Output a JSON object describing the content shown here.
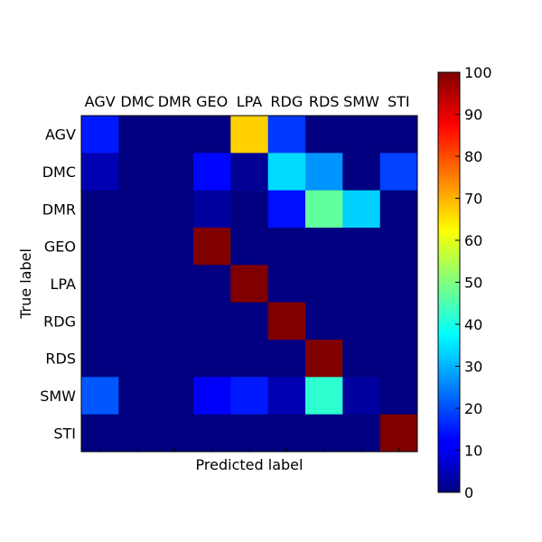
{
  "chart_data": {
    "type": "heatmap",
    "xlabel": "Predicted label",
    "ylabel": "True label",
    "x_categories": [
      "AGV",
      "DMC",
      "DMR",
      "GEO",
      "LPA",
      "RDG",
      "RDS",
      "SMW",
      "STI"
    ],
    "y_categories": [
      "AGV",
      "DMC",
      "DMR",
      "GEO",
      "LPA",
      "RDG",
      "RDS",
      "SMW",
      "STI"
    ],
    "values": [
      [
        15,
        0,
        0,
        0,
        67,
        18,
        0,
        0,
        0
      ],
      [
        5,
        0,
        0,
        13,
        2,
        34,
        27,
        0,
        19
      ],
      [
        0,
        0,
        0,
        3,
        0,
        14,
        47,
        33,
        0
      ],
      [
        0,
        0,
        0,
        100,
        0,
        0,
        0,
        0,
        0
      ],
      [
        0,
        0,
        0,
        0,
        100,
        0,
        0,
        0,
        0
      ],
      [
        0,
        0,
        0,
        0,
        0,
        100,
        0,
        0,
        0
      ],
      [
        0,
        0,
        0,
        0,
        0,
        0,
        100,
        0,
        0
      ],
      [
        21,
        0,
        0,
        12,
        15,
        5,
        42,
        3,
        0
      ],
      [
        0,
        0,
        0,
        0,
        0,
        0,
        0,
        0,
        100
      ]
    ],
    "colorbar": {
      "min": 0,
      "max": 100,
      "ticks": [
        0,
        10,
        20,
        30,
        40,
        50,
        60,
        70,
        80,
        90,
        100
      ],
      "colormap": "jet"
    }
  }
}
